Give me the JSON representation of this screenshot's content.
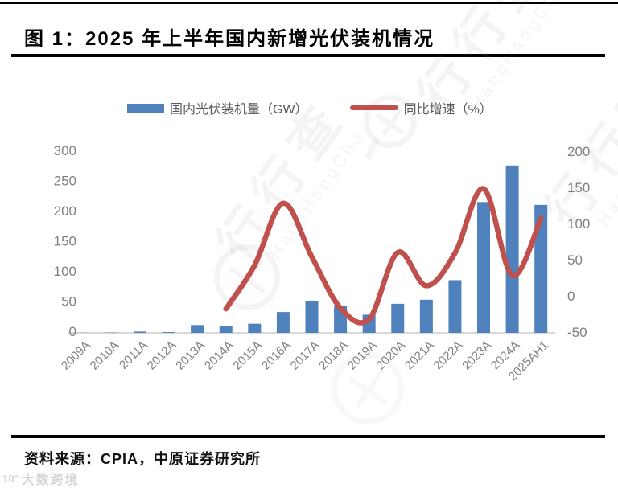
{
  "figure": {
    "title": "图 1：2025 年上半年国内新增光伏装机情况",
    "source": "资料来源：CPIA，中原证券研究所"
  },
  "legend": {
    "items": [
      {
        "label": "国内光伏装机量（GW）",
        "marker": "bar"
      },
      {
        "label": "同比增速（%）",
        "marker": "line"
      }
    ]
  },
  "colors": {
    "bar": "#4F81BD",
    "line": "#C0504D",
    "axis_text": "#808080",
    "axis_line": "#D9D9D9",
    "legend_text": "#595959",
    "title_text": "#000000"
  },
  "watermarks": {
    "brand_cn": "行行查",
    "brand_en": "HangHangCha",
    "bottom_left_logo": "10°",
    "bottom_left_text": "大数跨境"
  },
  "chart_data": {
    "type": "bar",
    "combo": "bar+line",
    "title": "2025 年上半年国内新增光伏装机情况",
    "categories": [
      "2009A",
      "2010A",
      "2011A",
      "2012A",
      "2013A",
      "2014A",
      "2015A",
      "2016A",
      "2017A",
      "2018A",
      "2019A",
      "2020A",
      "2021A",
      "2022A",
      "2023A",
      "2024A",
      "2025AH1"
    ],
    "series": [
      {
        "name": "国内光伏装机量（GW）",
        "type": "bar",
        "axis": "left",
        "values": [
          0.2,
          0.5,
          2.2,
          1.3,
          12.9,
          10.6,
          15.1,
          34.5,
          53.1,
          44.3,
          30.1,
          48.2,
          54.9,
          87.4,
          216.9,
          277.6,
          212.2
        ]
      },
      {
        "name": "同比增速（%）",
        "type": "line",
        "axis": "right",
        "values": [
          null,
          null,
          null,
          null,
          null,
          -18,
          42,
          128,
          54,
          -17,
          -32,
          60,
          14,
          59,
          148,
          28,
          107
        ]
      }
    ],
    "left_axis": {
      "ticks": [
        0,
        50,
        100,
        150,
        200,
        250,
        300
      ],
      "range": [
        0,
        300
      ]
    },
    "right_axis": {
      "ticks": [
        -50,
        0,
        50,
        100,
        150,
        200
      ],
      "range": [
        -50,
        200
      ]
    },
    "grid": false,
    "legend_position": "top"
  }
}
